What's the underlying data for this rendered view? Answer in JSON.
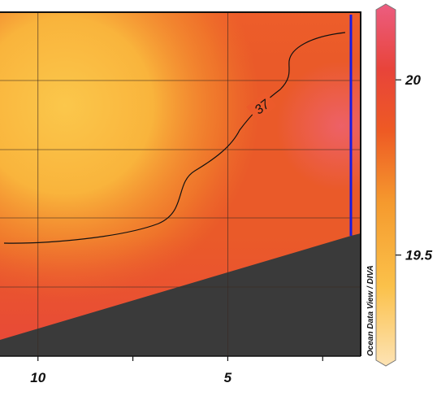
{
  "chart_data": {
    "type": "heatmap",
    "x_axis": {
      "reversed": true,
      "visible_range": [
        1.5,
        11
      ],
      "tick_labels": [
        "10",
        "5"
      ],
      "tick_values": [
        10,
        5
      ],
      "minor_tick_values": [
        7.5,
        2.5
      ]
    },
    "colorbar": {
      "tick_labels": [
        "20",
        "19.5"
      ],
      "tick_values": [
        20,
        19.5
      ],
      "range": [
        19.2,
        20.2
      ],
      "colors": [
        "#fde3b4",
        "#fbc14a",
        "#f59a2e",
        "#ee5a24",
        "#e8443a",
        "#ec5d80"
      ]
    },
    "contours": [
      {
        "label": "37",
        "value": 37
      }
    ],
    "station_line": {
      "color": "#1a1ae0",
      "x": 1.5
    },
    "bathymetry_color": "#3a3a3a",
    "grid": true,
    "watermark": "Ocean Data View / DIVA"
  }
}
